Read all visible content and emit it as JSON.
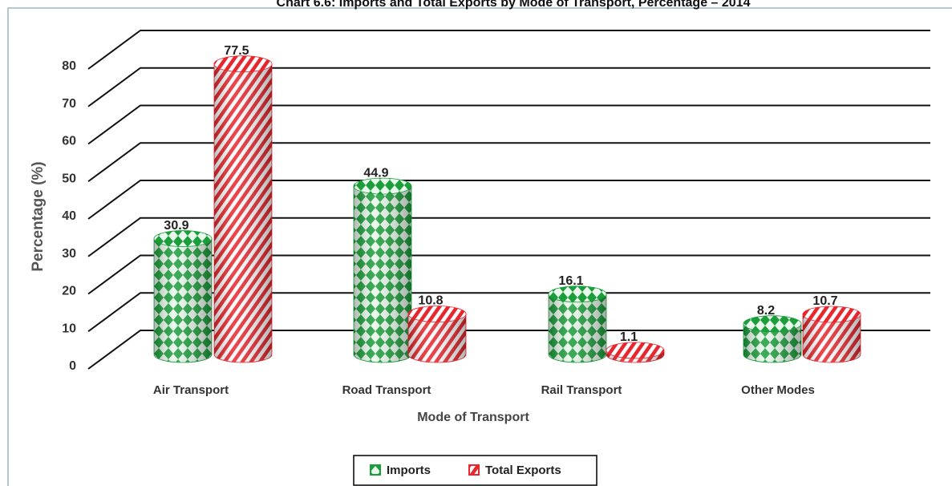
{
  "chart_data": {
    "type": "bar",
    "title": "Chart 6.6: Imports and Total Exports by Mode of Transport, Percentage – 2014",
    "x_label": "Mode of Transport",
    "y_label": "Percentage (%)",
    "categories": [
      "Air Transport",
      "Road Transport",
      "Rail Transport",
      "Other Modes"
    ],
    "series": [
      {
        "name": "Imports",
        "color": "#1a9e3a",
        "values": [
          30.9,
          44.9,
          16.1,
          8.2
        ]
      },
      {
        "name": "Total Exports",
        "color": "#e8262d",
        "values": [
          77.5,
          10.8,
          1.1,
          10.7
        ]
      }
    ],
    "ylim": [
      0,
      80
    ],
    "yticks": [
      0,
      10,
      20,
      30,
      40,
      50,
      60,
      70,
      80
    ],
    "grid": true,
    "legend": "bottom"
  }
}
